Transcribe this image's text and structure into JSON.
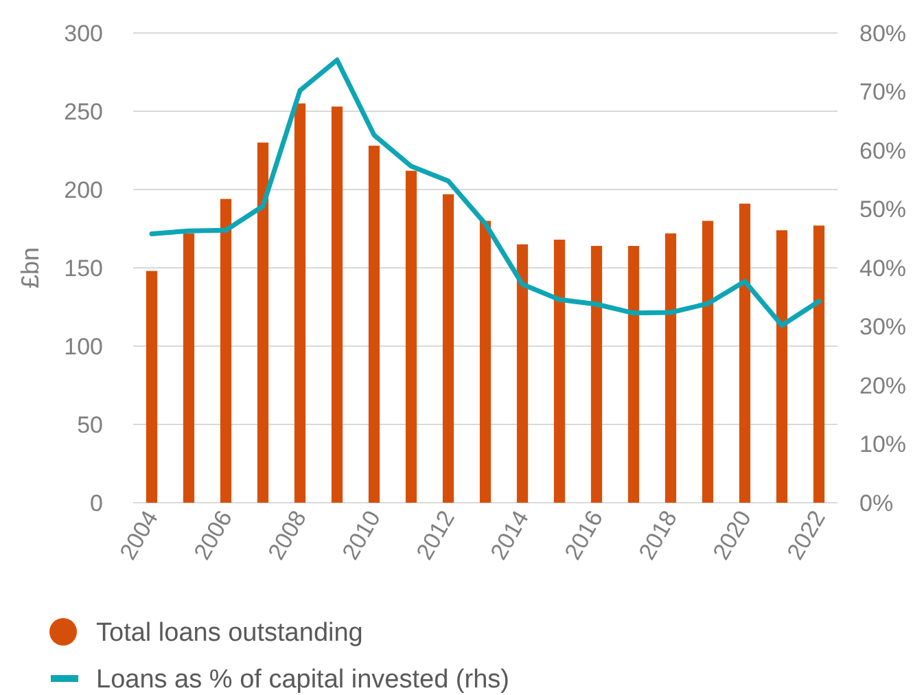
{
  "chart_data": {
    "type": "bar",
    "ylabel": "£bn",
    "categories": [
      "2004",
      null,
      "2006",
      null,
      "2008",
      null,
      "2010",
      null,
      "2012",
      null,
      "2014",
      null,
      "2016",
      null,
      "2018",
      null,
      "2020",
      null,
      "2022"
    ],
    "series": [
      {
        "name": "Total loans outstanding",
        "color": "#d64f0a",
        "values": [
          148,
          172,
          194,
          230,
          255,
          253,
          228,
          212,
          197,
          180,
          165,
          168,
          164,
          164,
          172,
          180,
          191,
          174,
          177
        ]
      },
      {
        "name": "Loans as % of capital invested (rhs)",
        "type": "line",
        "axis": "y2",
        "color": "#0ea5b5",
        "values": [
          45.8,
          46.3,
          46.4,
          50.5,
          70.2,
          75.4,
          62.6,
          57.3,
          54.8,
          47.5,
          37.2,
          34.6,
          33.8,
          32.3,
          32.4,
          33.9,
          37.7,
          30.2,
          34.3
        ]
      }
    ],
    "ylim": [
      0,
      300
    ],
    "yticks": [
      0,
      50,
      100,
      150,
      200,
      250,
      300
    ],
    "y2lim": [
      0,
      80
    ],
    "y2ticks": [
      {
        "value": 0,
        "label": "0%"
      },
      {
        "value": 10,
        "label": "10%"
      },
      {
        "value": 20,
        "label": "20%"
      },
      {
        "value": 30,
        "label": "30%"
      },
      {
        "value": 40,
        "label": "40%"
      },
      {
        "value": 50,
        "label": "50%"
      },
      {
        "value": 60,
        "label": "60%"
      },
      {
        "value": 70,
        "label": "70%"
      },
      {
        "value": 80,
        "label": "80%"
      }
    ],
    "grid": "y",
    "legend": "bottom",
    "marker": "none",
    "line_style": "solid"
  }
}
